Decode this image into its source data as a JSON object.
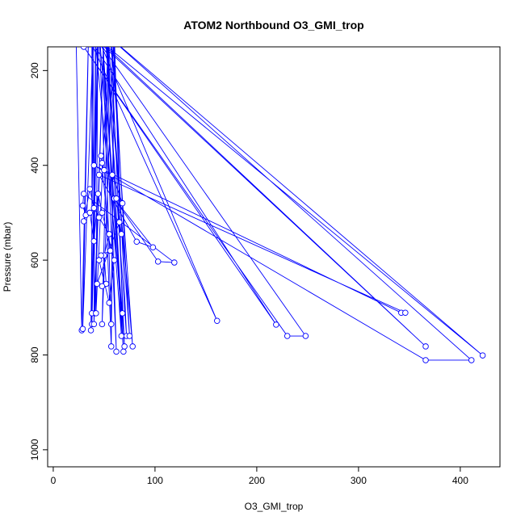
{
  "chart_data": {
    "type": "line",
    "title": "ATOM2 Northbound O3_GMI_trop",
    "xlabel": "O3_GMI_trop",
    "ylabel": "Pressure (mbar)",
    "xlim": [
      -5.5,
      439
    ],
    "ylim": [
      1036,
      150
    ],
    "y_reversed": true,
    "grid": false,
    "markers": "open-circle",
    "series_color": "#0000ff",
    "xticks": [
      0,
      100,
      200,
      300,
      400
    ],
    "xtick_labels": [
      "0",
      "100",
      "200",
      "300",
      "400"
    ],
    "yticks": [
      200,
      400,
      600,
      800,
      1000
    ],
    "ytick_labels": [
      "200",
      "400",
      "600",
      "800",
      "1000"
    ],
    "points": [
      [
        22,
        80
      ],
      [
        28,
        748
      ],
      [
        35,
        90
      ],
      [
        29,
        745
      ],
      [
        40,
        85
      ],
      [
        37,
        748
      ],
      [
        45,
        95
      ],
      [
        38,
        735
      ],
      [
        42,
        90
      ],
      [
        40,
        735
      ],
      [
        50,
        100
      ],
      [
        41,
        712
      ],
      [
        38,
        95
      ],
      [
        38,
        712
      ],
      [
        44,
        90
      ],
      [
        42,
        712
      ],
      [
        55,
        100
      ],
      [
        48,
        735
      ],
      [
        60,
        95
      ],
      [
        57,
        735
      ],
      [
        48,
        90
      ],
      [
        62,
        793
      ],
      [
        52,
        100
      ],
      [
        69,
        793
      ],
      [
        47,
        95
      ],
      [
        70,
        782
      ],
      [
        56,
        100
      ],
      [
        78,
        782
      ],
      [
        50,
        90
      ],
      [
        72,
        760
      ],
      [
        58,
        95
      ],
      [
        75,
        760
      ],
      [
        53,
        100
      ],
      [
        67,
        760
      ],
      [
        45,
        110
      ],
      [
        57,
        782
      ],
      [
        60,
        120
      ],
      [
        68,
        712
      ],
      [
        40,
        110
      ],
      [
        161,
        728
      ],
      [
        35,
        130
      ],
      [
        219,
        736
      ],
      [
        30,
        150
      ],
      [
        230,
        760
      ],
      [
        248,
        760
      ],
      [
        45,
        140
      ],
      [
        366,
        782
      ],
      [
        42,
        130
      ],
      [
        422,
        801
      ],
      [
        50,
        120
      ],
      [
        411,
        811
      ],
      [
        366,
        811
      ],
      [
        40,
        400
      ],
      [
        342,
        711
      ],
      [
        346,
        711
      ],
      [
        45,
        420
      ],
      [
        82,
        561
      ],
      [
        98,
        573
      ],
      [
        60,
        470
      ],
      [
        103,
        603
      ],
      [
        119,
        605
      ],
      [
        30,
        460
      ],
      [
        29,
        485
      ],
      [
        32,
        505
      ],
      [
        30,
        518
      ],
      [
        36,
        450
      ],
      [
        40,
        490
      ],
      [
        45,
        510
      ],
      [
        55,
        545
      ],
      [
        50,
        590
      ],
      [
        52,
        650
      ],
      [
        48,
        655
      ],
      [
        43,
        650
      ],
      [
        65,
        520
      ],
      [
        67,
        545
      ],
      [
        62,
        470
      ],
      [
        68,
        480
      ],
      [
        58,
        420
      ],
      [
        50,
        410
      ],
      [
        48,
        395
      ],
      [
        47,
        380
      ],
      [
        56,
        580
      ],
      [
        47,
        590
      ],
      [
        45,
        600
      ],
      [
        55,
        690
      ],
      [
        60,
        600
      ],
      [
        48,
        500
      ],
      [
        44,
        460
      ],
      [
        40,
        560
      ],
      [
        36,
        500
      ]
    ]
  }
}
